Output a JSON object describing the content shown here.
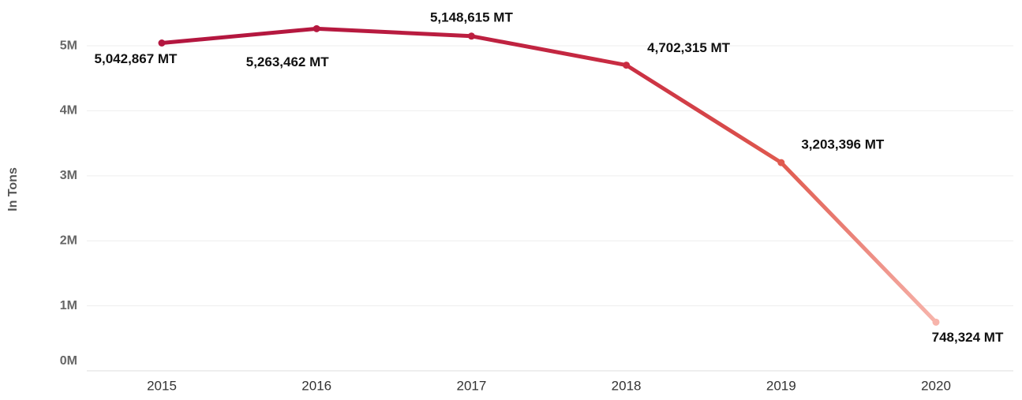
{
  "chart_data": {
    "type": "line",
    "y_axis_label": "In Tons",
    "categories": [
      "2015",
      "2016",
      "2017",
      "2018",
      "2019",
      "2020"
    ],
    "series": [
      {
        "values": [
          5042867,
          5263462,
          5148615,
          4702315,
          3203396,
          748324
        ],
        "value_labels": [
          "5,042,867 MT",
          "5,263,462 MT",
          "5,148,615 MT",
          "4,702,315 MT",
          "3,203,396 MT",
          "748,324 MT"
        ],
        "colors": [
          "#b3163f",
          "#b5183f",
          "#bc1f40",
          "#c92d42",
          "#e05a4f",
          "#f7b4ab"
        ]
      }
    ],
    "ylim": [
      0,
      5600000
    ],
    "yticks": [
      {
        "value": 0,
        "label": "0M"
      },
      {
        "value": 1000000,
        "label": "1M"
      },
      {
        "value": 2000000,
        "label": "2M"
      },
      {
        "value": 3000000,
        "label": "3M"
      },
      {
        "value": 4000000,
        "label": "4M"
      },
      {
        "value": 5000000,
        "label": "5M"
      }
    ],
    "grid": true
  }
}
